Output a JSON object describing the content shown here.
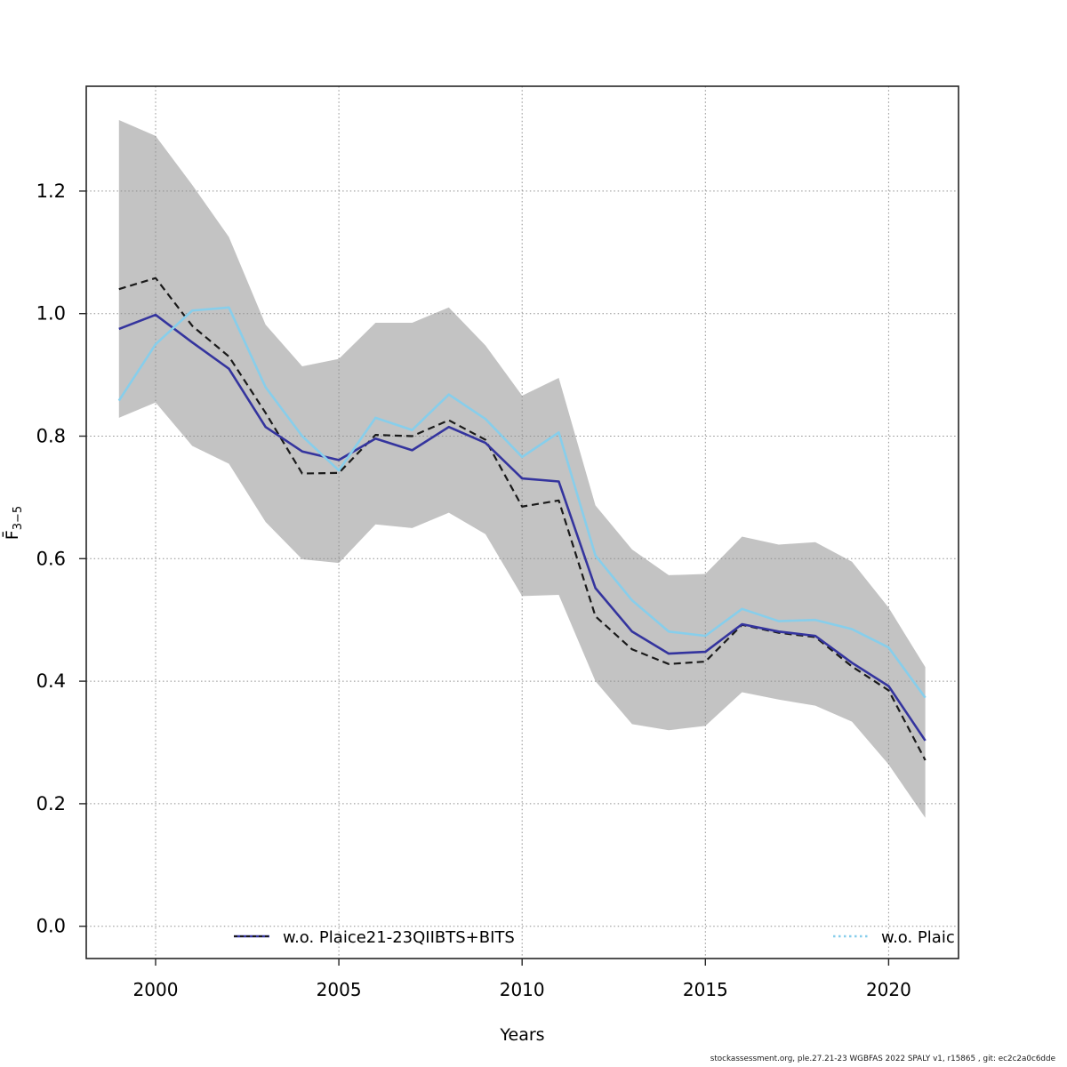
{
  "figure": {
    "background": "#ffffff",
    "footer_text": "stockassessment.org, ple.27.21-23 WGBFAS 2022 SPALY v1, r15865 , git: ec2c2a0c6dde"
  },
  "chart_data": {
    "type": "line",
    "title": "",
    "xlabel": "Years",
    "ylabel_main": "F̄",
    "ylabel_sub": "3−5",
    "xlim": [
      1998.1,
      2021.85
    ],
    "ylim": [
      -0.05,
      1.37
    ],
    "grid": "dotted",
    "legend_position": "bottom-inside",
    "x": [
      1999,
      2000,
      2001,
      2002,
      2003,
      2004,
      2005,
      2006,
      2007,
      2008,
      2009,
      2010,
      2011,
      2012,
      2013,
      2014,
      2015,
      2016,
      2017,
      2018,
      2019,
      2020,
      2021
    ],
    "xticks": [
      2000,
      2005,
      2010,
      2015,
      2020
    ],
    "xticklabels": [
      "2000",
      "2005",
      "2010",
      "2015",
      "2020"
    ],
    "yticks": [
      0.0,
      0.2,
      0.4,
      0.6,
      0.8,
      1.0,
      1.2
    ],
    "yticklabels": [
      "0.0",
      "0.2",
      "0.4",
      "0.6",
      "0.8",
      "1.0",
      "1.2"
    ],
    "band": {
      "id": "confidence-band",
      "color": "#c3c3c3",
      "upper": [
        1.316,
        1.29,
        1.21,
        1.125,
        0.982,
        0.914,
        0.926,
        0.985,
        0.985,
        1.01,
        0.948,
        0.866,
        0.895,
        0.687,
        0.615,
        0.573,
        0.575,
        0.636,
        0.623,
        0.627,
        0.595,
        0.52,
        0.423
      ],
      "lower": [
        0.83,
        0.855,
        0.784,
        0.755,
        0.66,
        0.599,
        0.593,
        0.656,
        0.65,
        0.675,
        0.64,
        0.539,
        0.541,
        0.4,
        0.33,
        0.32,
        0.327,
        0.382,
        0.37,
        0.36,
        0.334,
        0.264,
        0.177
      ]
    },
    "series": [
      {
        "id": "base-run-line",
        "visible_label": null,
        "color": "#1a1a1a",
        "style": "dashed",
        "dash": "8 5",
        "width": 2.2,
        "values": [
          1.04,
          1.058,
          0.98,
          0.93,
          0.838,
          0.739,
          0.74,
          0.802,
          0.8,
          0.826,
          0.794,
          0.685,
          0.695,
          0.506,
          0.452,
          0.428,
          0.432,
          0.492,
          0.479,
          0.472,
          0.424,
          0.385,
          0.271
        ]
      },
      {
        "id": "wo-plaice21-23qiibts-bits-line",
        "visible_label": "w.o. Plaice21-23QIIBTS+BITS",
        "color": "#34349e",
        "style": "solid",
        "dash": "",
        "width": 2.6,
        "values": [
          0.975,
          0.998,
          0.953,
          0.91,
          0.815,
          0.775,
          0.761,
          0.796,
          0.777,
          0.815,
          0.789,
          0.731,
          0.726,
          0.552,
          0.481,
          0.445,
          0.448,
          0.493,
          0.481,
          0.474,
          0.43,
          0.392,
          0.303
        ]
      },
      {
        "id": "wo-plaice-truncated-line",
        "visible_label": "w.o. Plaic",
        "color": "#87ceeb",
        "style": "solid",
        "dash": "",
        "width": 2.6,
        "values": [
          0.858,
          0.95,
          1.005,
          1.01,
          0.88,
          0.8,
          0.744,
          0.83,
          0.81,
          0.868,
          0.828,
          0.766,
          0.806,
          0.605,
          0.532,
          0.481,
          0.474,
          0.518,
          0.498,
          0.5,
          0.485,
          0.455,
          0.373
        ]
      }
    ],
    "legend": [
      {
        "label": "w.o. Plaice21-23QIIBTS+BITS",
        "swatch": "navy-with-black-dashes"
      },
      {
        "label": "w.o. Plaic",
        "swatch": "lightblue-dotted",
        "clipped_at_plot_edge": true
      }
    ],
    "colors": {
      "band": "#c3c3c3",
      "navy": "#34349e",
      "lightblue": "#87ceeb",
      "black_line": "#1a1a1a",
      "gridline": "#8f8f8f"
    }
  }
}
